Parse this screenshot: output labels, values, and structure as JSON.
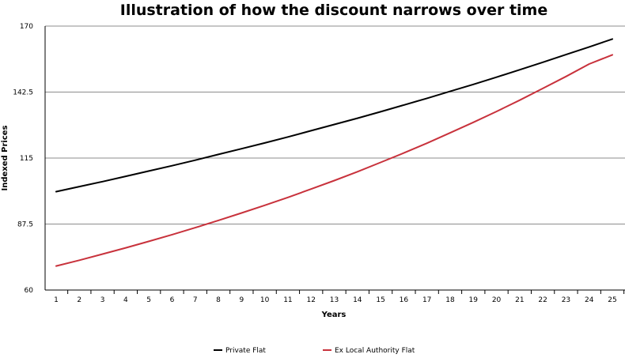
{
  "chart_data": {
    "type": "line",
    "title": "Illustration of how the discount narrows over time",
    "xlabel": "Years",
    "ylabel": "Indexed Prices",
    "x": [
      1,
      2,
      3,
      4,
      5,
      6,
      7,
      8,
      9,
      10,
      11,
      12,
      13,
      14,
      15,
      16,
      17,
      18,
      19,
      20,
      21,
      22,
      23,
      24,
      25
    ],
    "ylim": [
      60,
      170
    ],
    "yticks": [
      "60",
      "87.5",
      "115",
      "142.5",
      "170"
    ],
    "grid": true,
    "legend_position": "bottom",
    "series": [
      {
        "name": "Private Flat",
        "color": "#000000",
        "values": [
          101.0,
          103.1,
          105.2,
          107.4,
          109.6,
          111.8,
          114.1,
          116.5,
          118.9,
          121.3,
          123.8,
          126.4,
          129.0,
          131.6,
          134.3,
          137.1,
          139.9,
          142.8,
          145.7,
          148.7,
          151.8,
          154.9,
          158.1,
          161.3,
          164.6
        ]
      },
      {
        "name": "Ex Local Authority Flat",
        "color": "#c8323c",
        "values": [
          70.0,
          72.4,
          75.0,
          77.6,
          80.3,
          83.1,
          86.0,
          89.0,
          92.1,
          95.3,
          98.6,
          102.1,
          105.6,
          109.3,
          113.2,
          117.1,
          121.2,
          125.5,
          129.9,
          134.4,
          139.1,
          144.0,
          149.0,
          154.2,
          158.0
        ]
      }
    ]
  }
}
